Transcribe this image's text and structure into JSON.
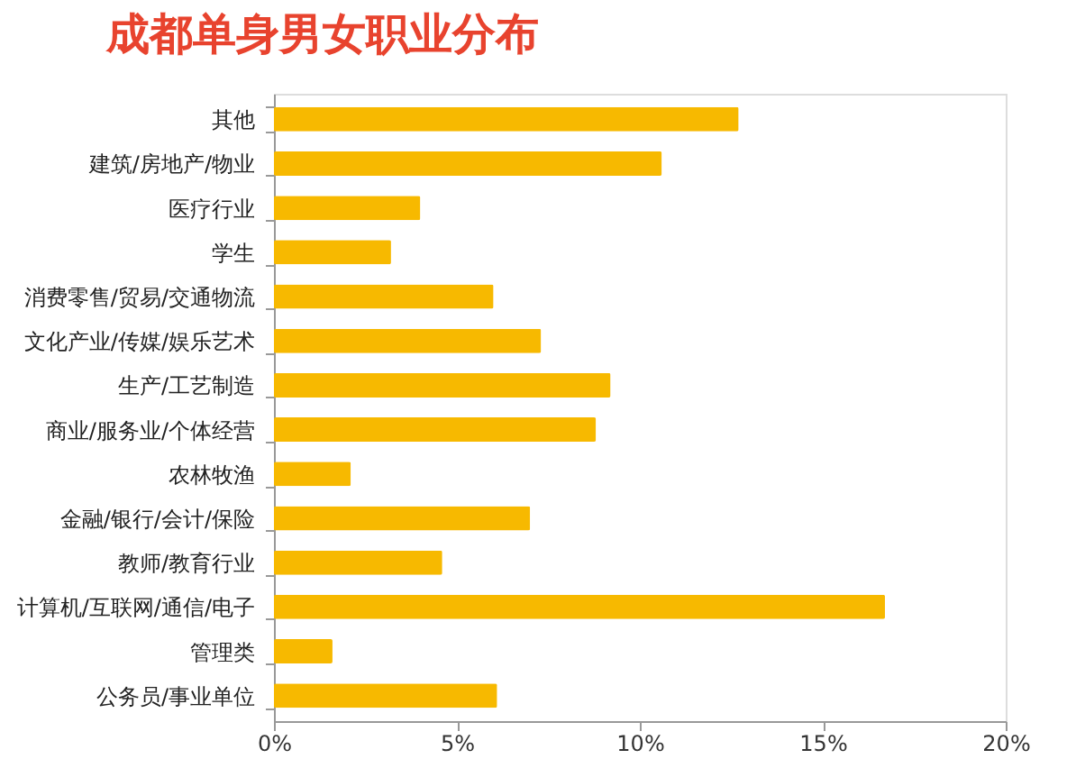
{
  "chart_data": {
    "type": "bar",
    "orientation": "horizontal",
    "title": "成都单身男女职业分布",
    "categories": [
      "其他",
      "建筑/房地产/物业",
      "医疗行业",
      "学生",
      "消费零售/贸易/交通物流",
      "文化产业/传媒/娱乐艺术",
      "生产/工艺制造",
      "商业/服务业/个体经营",
      "农林牧渔",
      "金融/银行/会计/保险",
      "教师/教育行业",
      "计算机/互联网/通信/电子",
      "管理类",
      "公务员/事业单位"
    ],
    "values": [
      12.7,
      10.6,
      4.0,
      3.2,
      6.0,
      7.3,
      9.2,
      8.8,
      2.1,
      7.0,
      4.6,
      16.7,
      1.6,
      6.1
    ],
    "color": "#f7b900",
    "xlim": [
      0,
      20
    ],
    "xticks": [
      {
        "value": 0,
        "label": "0%"
      },
      {
        "value": 5,
        "label": "5%"
      },
      {
        "value": 10,
        "label": "10%"
      },
      {
        "value": 15,
        "label": "15%"
      },
      {
        "value": 20,
        "label": "20%"
      }
    ],
    "grid": false
  }
}
